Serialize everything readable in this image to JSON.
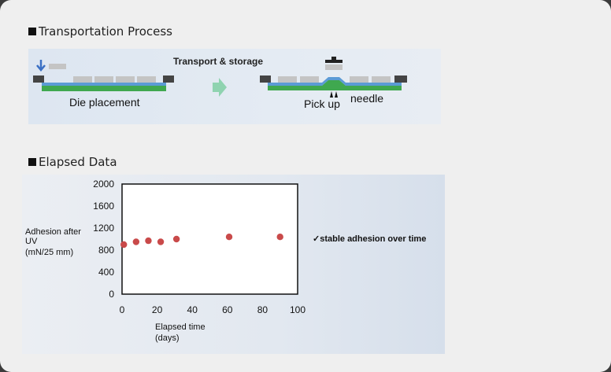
{
  "sections": {
    "transport_title": "Transportation Process",
    "elapsed_title": "Elapsed Data"
  },
  "process": {
    "step1_label": "Die placement",
    "transfer_label": "Transport & storage",
    "pickup_label": "Pick up",
    "needle_label": "needle",
    "arrow_color": "#8fd3b0",
    "tape_green": "#3fa84f",
    "tape_blue": "#5b9bd5"
  },
  "note": "✓stable adhesion over time",
  "chart_data": {
    "type": "scatter",
    "xlabel_lines": [
      "Elapsed time",
      "(days)"
    ],
    "ylabel_lines": [
      "Adhesion after",
      "UV",
      "(mN/25 mm)"
    ],
    "xlim": [
      0,
      100
    ],
    "ylim": [
      0,
      2000
    ],
    "xticks": [
      0,
      20,
      40,
      60,
      80,
      100
    ],
    "yticks": [
      0,
      400,
      800,
      1200,
      1600,
      2000
    ],
    "grid": false,
    "marker_color": "#c94a4a",
    "x": [
      1,
      8,
      15,
      22,
      31,
      61,
      90
    ],
    "y": [
      900,
      950,
      970,
      950,
      1000,
      1040,
      1040
    ]
  }
}
